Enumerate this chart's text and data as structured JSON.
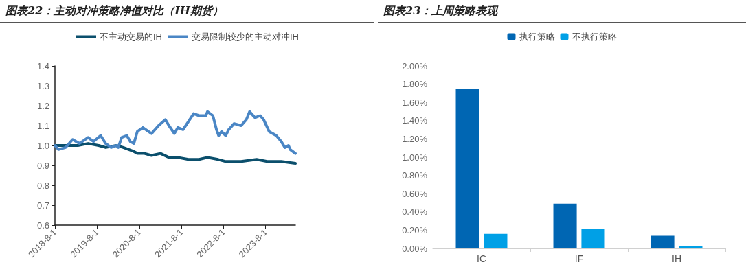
{
  "chart_data": [
    {
      "type": "line",
      "title": "图表22：主动对冲策略净值对比（IH期货）",
      "legend": "top",
      "grid": false,
      "marker": "none",
      "line_style": "solid",
      "xlim": [
        "2018-08-01",
        "2024-04-15"
      ],
      "xticks": [
        {
          "value": "2018-08-01",
          "label": "2018-8-1"
        },
        {
          "value": "2019-08-01",
          "label": "2019-8-1"
        },
        {
          "value": "2020-08-01",
          "label": "2020-8-1"
        },
        {
          "value": "2021-08-01",
          "label": "2021-8-1"
        },
        {
          "value": "2022-08-01",
          "label": "2022-8-1"
        },
        {
          "value": "2023-08-01",
          "label": "2023-8-1"
        }
      ],
      "ylim": [
        0.6,
        1.4
      ],
      "yticks": [
        {
          "value": 0.6,
          "label": "0.6"
        },
        {
          "value": 0.7,
          "label": "0.7"
        },
        {
          "value": 0.8,
          "label": "0.8"
        },
        {
          "value": 0.9,
          "label": "0.9"
        },
        {
          "value": 1.0,
          "label": "1.0"
        },
        {
          "value": 1.1,
          "label": "1.1"
        },
        {
          "value": 1.2,
          "label": "1.2"
        },
        {
          "value": 1.3,
          "label": "1.3"
        },
        {
          "value": 1.4,
          "label": "1.4"
        }
      ],
      "series": [
        {
          "name": "不主动交易的IH",
          "color": "#0b4f6c",
          "x": [
            "2018-08-01",
            "2018-11-15",
            "2019-02-15",
            "2019-05-15",
            "2019-08-15",
            "2019-10-15",
            "2020-01-15",
            "2020-03-15",
            "2020-06-15",
            "2020-07-15",
            "2020-09-15",
            "2020-11-15",
            "2021-02-01",
            "2021-04-15",
            "2021-07-01",
            "2021-10-01",
            "2022-01-01",
            "2022-03-15",
            "2022-06-15",
            "2022-08-15",
            "2023-01-01",
            "2023-05-15",
            "2023-08-15",
            "2023-12-15",
            "2024-04-15"
          ],
          "values": [
            1.0,
            1.0,
            1.0,
            1.01,
            1.0,
            0.99,
            1.0,
            0.99,
            0.97,
            0.96,
            0.96,
            0.95,
            0.96,
            0.94,
            0.94,
            0.93,
            0.93,
            0.94,
            0.93,
            0.92,
            0.92,
            0.93,
            0.92,
            0.92,
            0.91
          ]
        },
        {
          "name": "交易限制较少的主动对冲IH",
          "color": "#4a86c5",
          "x": [
            "2018-08-01",
            "2018-09-01",
            "2018-11-01",
            "2019-01-01",
            "2019-03-01",
            "2019-05-15",
            "2019-07-01",
            "2019-09-01",
            "2019-10-15",
            "2019-12-01",
            "2020-01-15",
            "2020-02-01",
            "2020-03-01",
            "2020-04-15",
            "2020-05-15",
            "2020-06-15",
            "2020-07-15",
            "2020-09-01",
            "2020-11-15",
            "2021-01-15",
            "2021-03-15",
            "2021-04-15",
            "2021-06-01",
            "2021-07-01",
            "2021-08-15",
            "2021-10-01",
            "2021-11-15",
            "2022-01-01",
            "2022-03-01",
            "2022-03-15",
            "2022-05-01",
            "2022-06-01",
            "2022-06-20",
            "2022-07-15",
            "2022-08-20",
            "2022-09-15",
            "2022-11-01",
            "2023-01-01",
            "2023-02-15",
            "2023-03-15",
            "2023-05-01",
            "2023-06-15",
            "2023-07-15",
            "2023-09-01",
            "2023-11-01",
            "2023-12-15",
            "2024-01-15",
            "2024-02-15",
            "2024-03-01",
            "2024-04-15"
          ],
          "values": [
            1.0,
            0.98,
            0.99,
            1.03,
            1.01,
            1.04,
            1.02,
            1.05,
            1.01,
            0.99,
            1.0,
            0.99,
            1.04,
            1.05,
            1.02,
            1.01,
            1.07,
            1.09,
            1.06,
            1.1,
            1.13,
            1.1,
            1.06,
            1.09,
            1.08,
            1.12,
            1.16,
            1.15,
            1.15,
            1.17,
            1.15,
            1.08,
            1.05,
            1.07,
            1.05,
            1.08,
            1.11,
            1.1,
            1.13,
            1.17,
            1.14,
            1.15,
            1.13,
            1.07,
            1.05,
            1.02,
            0.99,
            1.0,
            0.98,
            0.96
          ]
        }
      ]
    },
    {
      "type": "bar",
      "title": "图表23：上周策略表现",
      "legend": "top",
      "grid": false,
      "categories": [
        "IC",
        "IF",
        "IH"
      ],
      "ylim": [
        0,
        2
      ],
      "yticks": [
        {
          "value": 0,
          "label": "0.00%"
        },
        {
          "value": 0.2,
          "label": "0.20%"
        },
        {
          "value": 0.4,
          "label": "0.40%"
        },
        {
          "value": 0.6,
          "label": "0.60%"
        },
        {
          "value": 0.8,
          "label": "0.80%"
        },
        {
          "value": 1.0,
          "label": "1.00%"
        },
        {
          "value": 1.2,
          "label": "1.20%"
        },
        {
          "value": 1.4,
          "label": "1.40%"
        },
        {
          "value": 1.6,
          "label": "1.60%"
        },
        {
          "value": 1.8,
          "label": "1.80%"
        },
        {
          "value": 2.0,
          "label": "2.00%"
        }
      ],
      "series": [
        {
          "name": "执行策略",
          "color": "#0066b3",
          "values": [
            1.75,
            0.49,
            0.14
          ]
        },
        {
          "name": "不执行策略",
          "color": "#00a0e6",
          "values": [
            0.16,
            0.21,
            0.03
          ]
        }
      ]
    }
  ]
}
